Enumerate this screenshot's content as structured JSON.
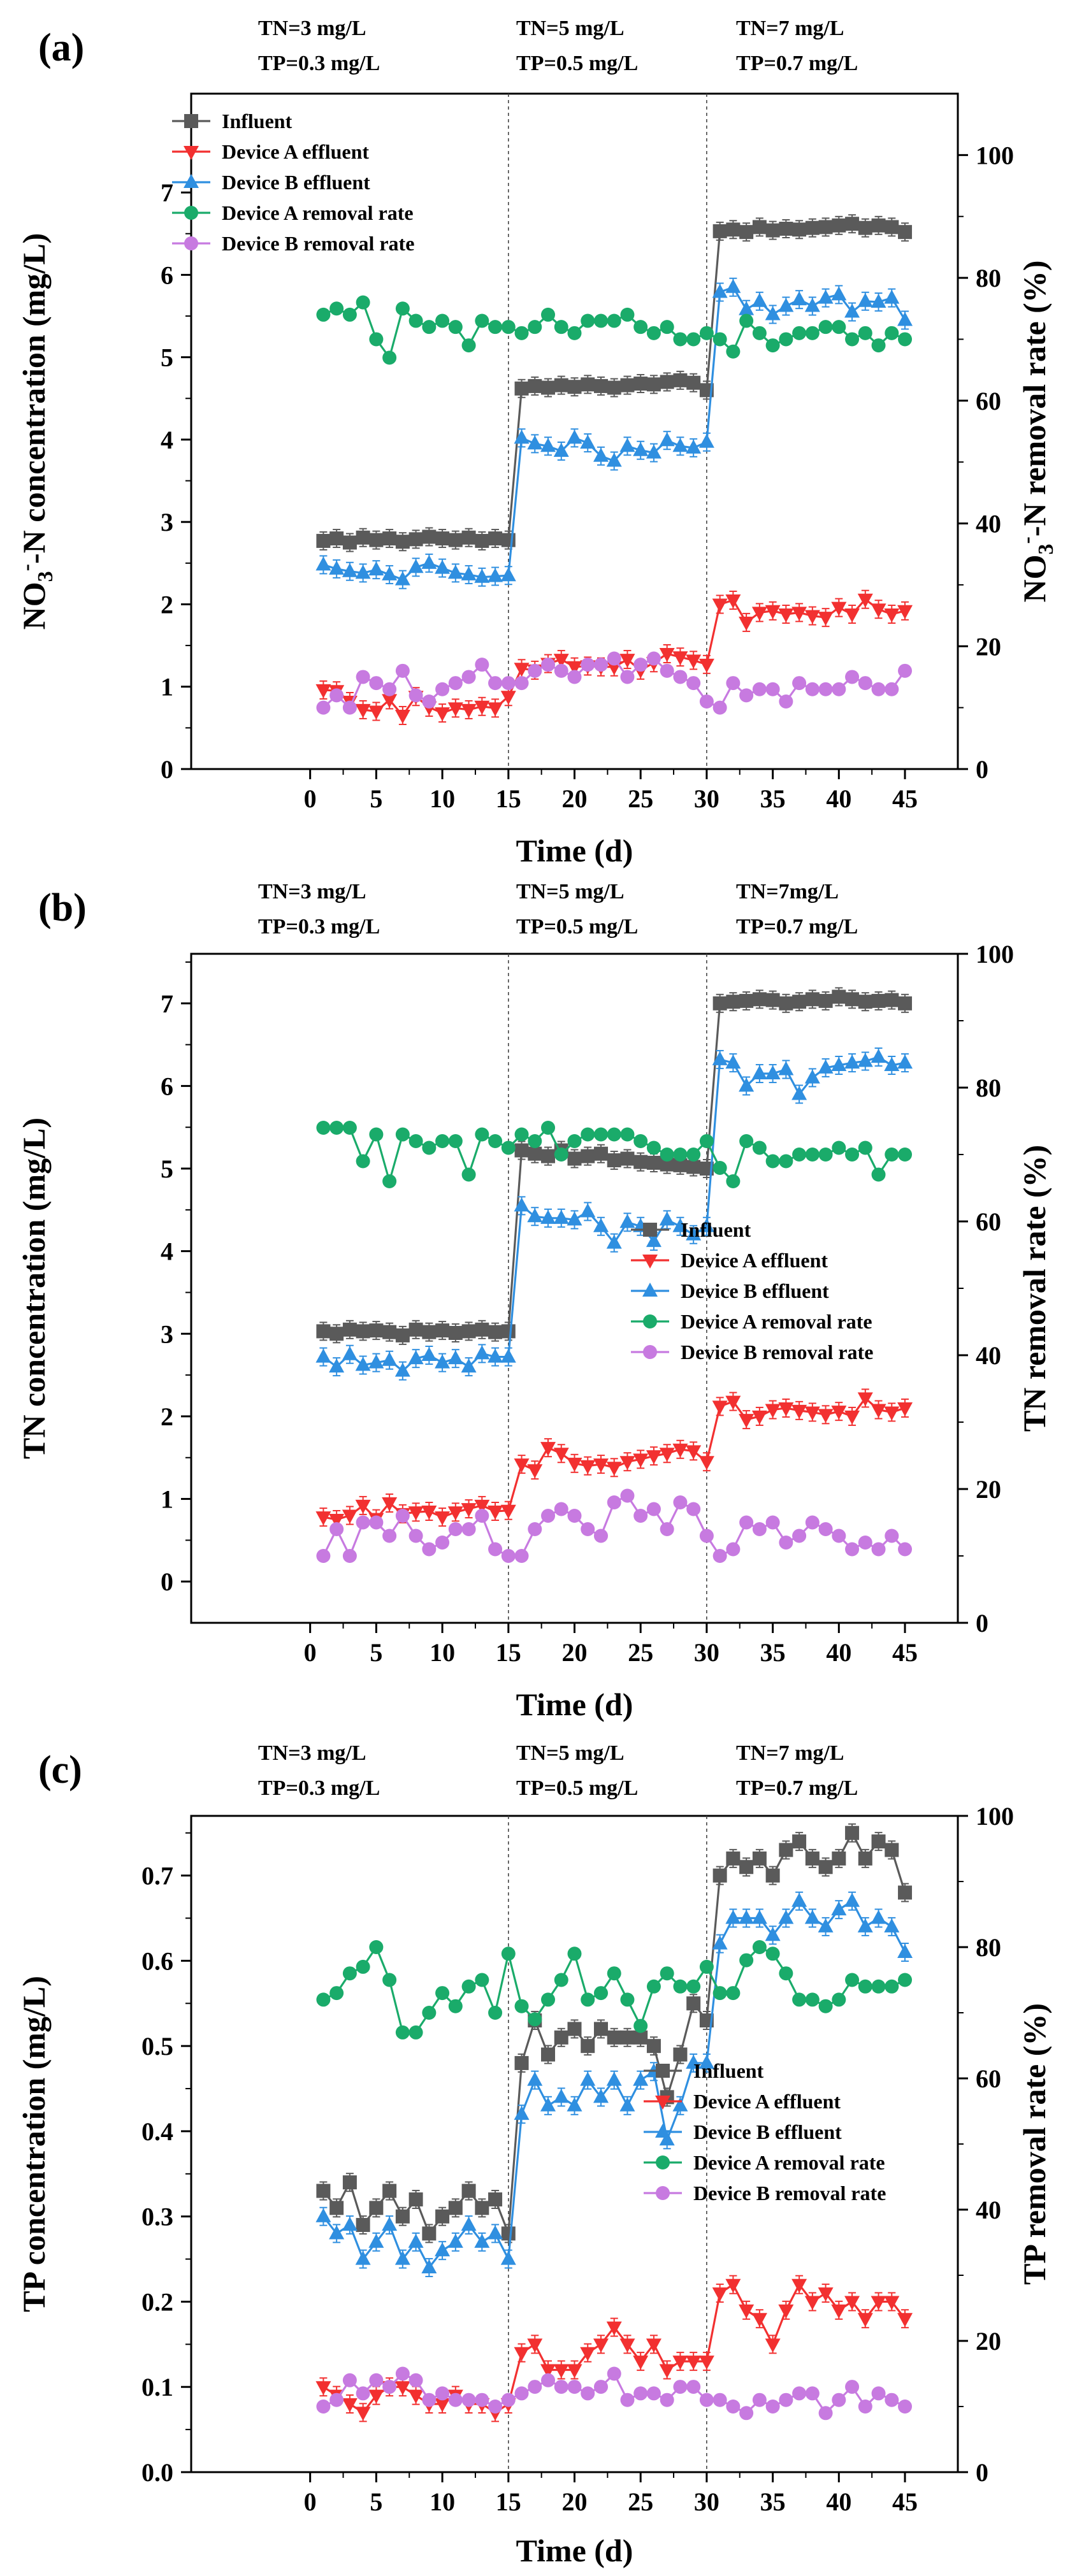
{
  "chart_data": [
    {
      "type": "line",
      "panel_label": "(a)",
      "xlabel": "Time (d)",
      "ylabel_left": "NO3--N concentration (mg/L)",
      "ylabel_left_parts": {
        "prefix": "NO",
        "sub": "3",
        "sup": "-",
        "suffix": "-N concentration (mg/L)"
      },
      "ylabel_right": "NO3--N removal rate (%)",
      "ylabel_right_parts": {
        "prefix": "NO",
        "sub": "3",
        "sup": "-",
        "suffix": "-N removal rate (%)"
      },
      "xlim": [
        -9,
        49
      ],
      "xticks": [
        0,
        5,
        10,
        15,
        20,
        25,
        30,
        35,
        40,
        45
      ],
      "ylim_left": [
        0,
        8.2
      ],
      "yticks_left": [
        0,
        1,
        2,
        3,
        4,
        5,
        6,
        7
      ],
      "ylim_right": [
        0,
        110
      ],
      "yticks_right": [
        0,
        20,
        40,
        60,
        80,
        100
      ],
      "dividers": [
        15,
        30
      ],
      "legend_position": "top-left",
      "conditions": [
        {
          "tn": "TN=3 mg/L",
          "tp": "TP=0.3 mg/L"
        },
        {
          "tn": "TN=5 mg/L",
          "tp": "TP=0.5 mg/L"
        },
        {
          "tn": "TN=7 mg/L",
          "tp": "TP=0.7 mg/L"
        }
      ],
      "series": [
        {
          "name": "Influent",
          "color": "#5a5a5a",
          "marker": "square",
          "axis": "left",
          "values": [
            2.77,
            2.8,
            2.75,
            2.81,
            2.78,
            2.8,
            2.76,
            2.79,
            2.82,
            2.8,
            2.78,
            2.81,
            2.77,
            2.8,
            2.78,
            4.62,
            4.65,
            4.63,
            4.66,
            4.64,
            4.67,
            4.65,
            4.63,
            4.66,
            4.68,
            4.67,
            4.7,
            4.72,
            4.69,
            4.6,
            6.53,
            6.55,
            6.52,
            6.58,
            6.54,
            6.56,
            6.55,
            6.57,
            6.58,
            6.6,
            6.62,
            6.57,
            6.6,
            6.58,
            6.52
          ]
        },
        {
          "name": "Device A effluent",
          "color": "#f23030",
          "marker": "triangle-down",
          "axis": "left",
          "values": [
            0.96,
            0.95,
            0.82,
            0.72,
            0.7,
            0.84,
            0.65,
            0.88,
            0.75,
            0.68,
            0.74,
            0.72,
            0.76,
            0.74,
            0.88,
            1.22,
            1.2,
            1.28,
            1.33,
            1.24,
            1.25,
            1.24,
            1.24,
            1.33,
            1.2,
            1.29,
            1.4,
            1.36,
            1.32,
            1.27,
            2.0,
            2.05,
            1.78,
            1.9,
            1.92,
            1.88,
            1.9,
            1.86,
            1.84,
            1.96,
            1.88,
            2.06,
            1.94,
            1.88,
            1.92
          ]
        },
        {
          "name": "Device B effluent",
          "color": "#2f8fe0",
          "marker": "triangle-up",
          "axis": "left",
          "values": [
            2.48,
            2.43,
            2.4,
            2.38,
            2.42,
            2.36,
            2.3,
            2.45,
            2.5,
            2.44,
            2.38,
            2.36,
            2.33,
            2.34,
            2.35,
            4.02,
            3.95,
            3.92,
            3.86,
            4.02,
            3.96,
            3.8,
            3.74,
            3.92,
            3.87,
            3.84,
            3.99,
            3.92,
            3.9,
            3.97,
            5.79,
            5.85,
            5.58,
            5.68,
            5.52,
            5.62,
            5.7,
            5.62,
            5.72,
            5.76,
            5.55,
            5.68,
            5.67,
            5.72,
            5.45
          ]
        },
        {
          "name": "Device A removal rate",
          "color": "#1aab6a",
          "marker": "circle",
          "axis": "right",
          "values": [
            74,
            75,
            74,
            76,
            70,
            67,
            75,
            73,
            72,
            73,
            72,
            69,
            73,
            72,
            72,
            71,
            72,
            74,
            72,
            71,
            73,
            73,
            73,
            74,
            72,
            71,
            72,
            70,
            70,
            71,
            70,
            68,
            73,
            71,
            69,
            70,
            71,
            71,
            72,
            72,
            70,
            71,
            69,
            71,
            70
          ]
        },
        {
          "name": "Device B removal rate",
          "color": "#c77ae0",
          "marker": "circle",
          "axis": "right",
          "values": [
            10,
            12,
            10,
            15,
            14,
            13,
            16,
            12,
            11,
            13,
            14,
            15,
            17,
            14,
            14,
            14,
            16,
            17,
            16,
            15,
            17,
            17,
            18,
            15,
            17,
            18,
            16,
            15,
            14,
            11,
            10,
            14,
            12,
            13,
            13,
            11,
            14,
            13,
            13,
            13,
            15,
            14,
            13,
            13,
            16
          ]
        }
      ],
      "legend": [
        "Influent",
        "Device A effluent",
        "Device B effluent",
        "Device A removal rate",
        "Device B removal rate"
      ]
    },
    {
      "type": "line",
      "panel_label": "(b)",
      "xlabel": "Time (d)",
      "ylabel_left": "TN concentration (mg/L)",
      "ylabel_right": "TN removal rate (%)",
      "xlim": [
        -9,
        49
      ],
      "xticks": [
        0,
        5,
        10,
        15,
        20,
        25,
        30,
        35,
        40,
        45
      ],
      "ylim_left": [
        -0.5,
        7.6
      ],
      "yticks_left": [
        0,
        1,
        2,
        3,
        4,
        5,
        6,
        7
      ],
      "ylim_right": [
        0,
        100
      ],
      "yticks_right": [
        0,
        20,
        40,
        60,
        80,
        100
      ],
      "dividers": [
        15,
        30
      ],
      "legend_position": "middle-right",
      "conditions": [
        {
          "tn": "TN=3 mg/L",
          "tp": "TP=0.3 mg/L"
        },
        {
          "tn": "TN=5 mg/L",
          "tp": "TP=0.5 mg/L"
        },
        {
          "tn": "TN=7mg/L",
          "tp": "TP=0.7 mg/L"
        }
      ],
      "series": [
        {
          "name": "Influent",
          "color": "#5a5a5a",
          "marker": "square",
          "axis": "left",
          "values": [
            3.03,
            3.0,
            3.05,
            3.03,
            3.04,
            3.02,
            2.98,
            3.05,
            3.02,
            3.04,
            3.01,
            3.03,
            3.05,
            3.02,
            3.03,
            5.22,
            5.18,
            5.15,
            5.22,
            5.12,
            5.15,
            5.18,
            5.1,
            5.12,
            5.08,
            5.07,
            5.05,
            5.04,
            5.02,
            5.0,
            7.0,
            7.02,
            7.03,
            7.05,
            7.04,
            7.0,
            7.02,
            7.05,
            7.03,
            7.08,
            7.05,
            7.02,
            7.03,
            7.04,
            7.0
          ]
        },
        {
          "name": "Device A effluent",
          "color": "#f23030",
          "marker": "triangle-down",
          "axis": "left",
          "values": [
            0.78,
            0.75,
            0.8,
            0.92,
            0.76,
            0.95,
            0.82,
            0.84,
            0.85,
            0.78,
            0.84,
            0.88,
            0.92,
            0.85,
            0.86,
            1.42,
            1.35,
            1.62,
            1.55,
            1.43,
            1.4,
            1.42,
            1.38,
            1.45,
            1.48,
            1.52,
            1.55,
            1.6,
            1.58,
            1.45,
            2.12,
            2.18,
            1.96,
            2.0,
            2.08,
            2.1,
            2.07,
            2.05,
            2.02,
            2.06,
            2.0,
            2.22,
            2.08,
            2.05,
            2.1
          ]
        },
        {
          "name": "Device B effluent",
          "color": "#2f8fe0",
          "marker": "triangle-up",
          "axis": "left",
          "values": [
            2.72,
            2.6,
            2.75,
            2.62,
            2.65,
            2.68,
            2.55,
            2.7,
            2.74,
            2.65,
            2.7,
            2.6,
            2.76,
            2.72,
            2.72,
            4.55,
            4.42,
            4.4,
            4.4,
            4.38,
            4.48,
            4.3,
            4.1,
            4.35,
            4.3,
            4.12,
            4.38,
            4.3,
            4.2,
            4.3,
            6.32,
            6.28,
            6.0,
            6.15,
            6.15,
            6.2,
            5.9,
            6.1,
            6.22,
            6.25,
            6.28,
            6.3,
            6.35,
            6.25,
            6.28
          ]
        },
        {
          "name": "Device A removal rate",
          "color": "#1aab6a",
          "marker": "circle",
          "axis": "right",
          "values": [
            74,
            74,
            74,
            69,
            73,
            66,
            73,
            72,
            71,
            72,
            72,
            67,
            73,
            72,
            71,
            73,
            72,
            74,
            70,
            72,
            73,
            73,
            73,
            73,
            72,
            71,
            70,
            70,
            70,
            72,
            68,
            66,
            72,
            71,
            69,
            69,
            70,
            70,
            70,
            71,
            70,
            71,
            67,
            70,
            70
          ]
        },
        {
          "name": "Device B removal rate",
          "color": "#c77ae0",
          "marker": "circle",
          "axis": "right",
          "values": [
            10,
            14,
            10,
            15,
            15,
            13,
            16,
            13,
            11,
            12,
            14,
            14,
            16,
            11,
            10,
            10,
            14,
            16,
            17,
            16,
            14,
            13,
            18,
            19,
            16,
            17,
            14,
            18,
            17,
            13,
            10,
            11,
            15,
            14,
            15,
            12,
            13,
            15,
            14,
            13,
            11,
            12,
            11,
            13,
            11
          ]
        }
      ],
      "legend": [
        "Influent",
        "Device A effluent",
        "Device B effluent",
        "Device A removal rate",
        "Device B removal rate"
      ]
    },
    {
      "type": "line",
      "panel_label": "(c)",
      "xlabel": "Time (d)",
      "ylabel_left": "TP concentration (mg/L)",
      "ylabel_right": "TP removal rate (%)",
      "xlim": [
        -9,
        49
      ],
      "xticks": [
        0,
        5,
        10,
        15,
        20,
        25,
        30,
        35,
        40,
        45
      ],
      "ylim_left": [
        0,
        0.77
      ],
      "yticks_left": [
        0,
        0.1,
        0.2,
        0.3,
        0.4,
        0.5,
        0.6,
        0.7
      ],
      "ylim_right": [
        0,
        100
      ],
      "yticks_right": [
        0,
        20,
        40,
        60,
        80,
        100
      ],
      "dividers": [
        15,
        30
      ],
      "legend_position": "middle-right",
      "conditions": [
        {
          "tn": "TN=3 mg/L",
          "tp": "TP=0.3 mg/L"
        },
        {
          "tn": "TN=5 mg/L",
          "tp": "TP=0.5 mg/L"
        },
        {
          "tn": "TN=7 mg/L",
          "tp": "TP=0.7 mg/L"
        }
      ],
      "series": [
        {
          "name": "Influent",
          "color": "#5a5a5a",
          "marker": "square",
          "axis": "left",
          "values": [
            0.33,
            0.31,
            0.34,
            0.29,
            0.31,
            0.33,
            0.3,
            0.32,
            0.28,
            0.3,
            0.31,
            0.33,
            0.31,
            0.32,
            0.28,
            0.48,
            0.53,
            0.49,
            0.51,
            0.52,
            0.5,
            0.52,
            0.51,
            0.51,
            0.51,
            0.5,
            0.44,
            0.49,
            0.55,
            0.53,
            0.7,
            0.72,
            0.71,
            0.72,
            0.7,
            0.73,
            0.74,
            0.72,
            0.71,
            0.72,
            0.75,
            0.72,
            0.74,
            0.73,
            0.68
          ]
        },
        {
          "name": "Device A effluent",
          "color": "#f23030",
          "marker": "triangle-down",
          "axis": "left",
          "values": [
            0.1,
            0.09,
            0.08,
            0.07,
            0.09,
            0.1,
            0.1,
            0.09,
            0.08,
            0.08,
            0.09,
            0.08,
            0.08,
            0.07,
            0.08,
            0.14,
            0.15,
            0.12,
            0.12,
            0.12,
            0.14,
            0.15,
            0.17,
            0.15,
            0.13,
            0.15,
            0.12,
            0.13,
            0.13,
            0.13,
            0.21,
            0.22,
            0.19,
            0.18,
            0.15,
            0.19,
            0.22,
            0.2,
            0.21,
            0.19,
            0.2,
            0.18,
            0.2,
            0.2,
            0.18
          ]
        },
        {
          "name": "Device B effluent",
          "color": "#2f8fe0",
          "marker": "triangle-up",
          "axis": "left",
          "values": [
            0.3,
            0.28,
            0.29,
            0.25,
            0.27,
            0.29,
            0.25,
            0.27,
            0.24,
            0.26,
            0.27,
            0.29,
            0.27,
            0.28,
            0.25,
            0.42,
            0.46,
            0.43,
            0.44,
            0.43,
            0.46,
            0.44,
            0.46,
            0.43,
            0.46,
            0.47,
            0.39,
            0.43,
            0.48,
            0.48,
            0.62,
            0.65,
            0.65,
            0.65,
            0.63,
            0.65,
            0.67,
            0.65,
            0.64,
            0.66,
            0.67,
            0.64,
            0.65,
            0.64,
            0.61
          ]
        },
        {
          "name": "Device A removal rate",
          "color": "#1aab6a",
          "marker": "circle",
          "axis": "right",
          "values": [
            72,
            73,
            76,
            77,
            80,
            75,
            67,
            67,
            70,
            73,
            71,
            74,
            75,
            70,
            79,
            71,
            69,
            72,
            75,
            79,
            72,
            73,
            76,
            72,
            68,
            74,
            76,
            74,
            74,
            77,
            73,
            73,
            78,
            80,
            79,
            76,
            72,
            72,
            71,
            72,
            75,
            74,
            74,
            74,
            75
          ]
        },
        {
          "name": "Device B removal rate",
          "color": "#c77ae0",
          "marker": "circle",
          "axis": "right",
          "values": [
            10,
            11,
            14,
            12,
            14,
            13,
            15,
            14,
            11,
            12,
            11,
            11,
            11,
            10,
            11,
            12,
            13,
            14,
            13,
            13,
            12,
            13,
            15,
            11,
            12,
            12,
            11,
            13,
            13,
            11,
            11,
            10,
            9,
            11,
            10,
            11,
            12,
            12,
            9,
            11,
            13,
            10,
            12,
            11,
            10
          ]
        }
      ],
      "legend": [
        "Influent",
        "Device A effluent",
        "Device B effluent",
        "Device A removal rate",
        "Device B removal rate"
      ]
    }
  ]
}
